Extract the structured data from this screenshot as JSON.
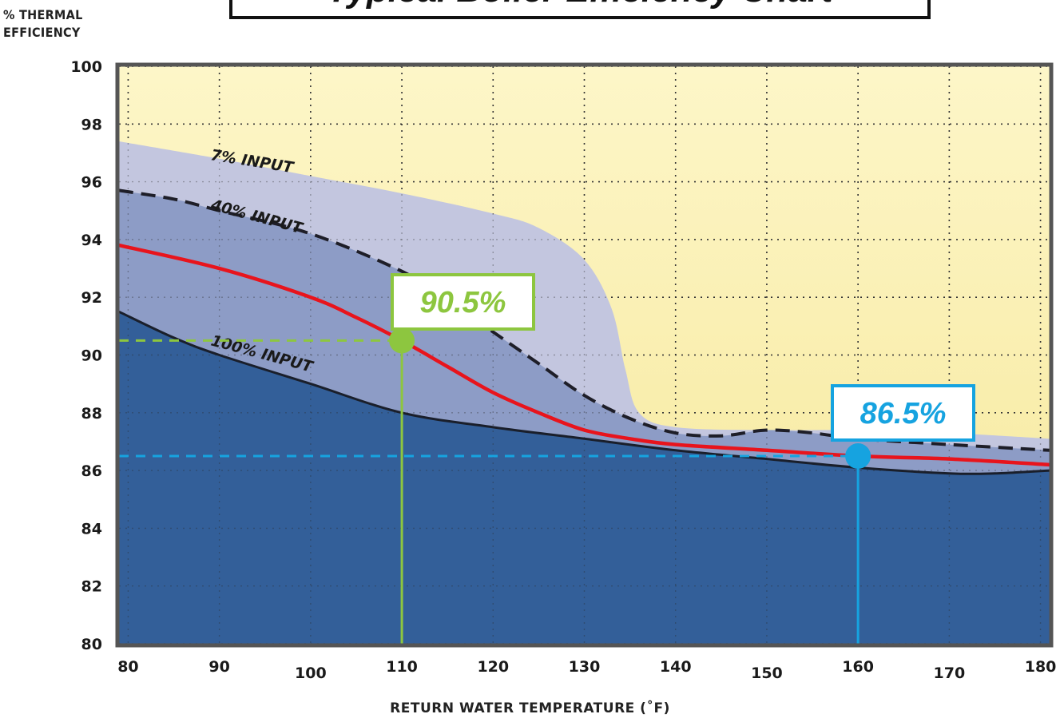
{
  "title": "Typical Boiler Efficiency Chart",
  "colors": {
    "background_top": "#fdf6c8",
    "background_bottom": "#f6e89a",
    "band_7": "#c3c6df",
    "band_40": "#8d9cc6",
    "band_100": "#335f99",
    "red_curve": "#e8141c",
    "green_marker": "#8dc63f",
    "blue_marker": "#16a3e0",
    "frame": "#555555"
  },
  "chart_data": {
    "type": "area",
    "title": "Typical Boiler Efficiency Chart",
    "ylabel": "% THERMAL EFFICIENCY",
    "xlabel": "RETURN WATER TEMPERATURE (˚F)",
    "xlim": [
      79,
      181
    ],
    "ylim": [
      80,
      100
    ],
    "x_ticks": [
      "80",
      "90",
      "100",
      "110",
      "120",
      "130",
      "140",
      "150",
      "160",
      "170",
      "180"
    ],
    "y_ticks": [
      "80",
      "82",
      "84",
      "86",
      "88",
      "90",
      "92",
      "94",
      "96",
      "98",
      "100"
    ],
    "grid": true,
    "series": [
      {
        "name": "7% INPUT",
        "style": "area",
        "x": [
          79,
          90,
          100,
          110,
          120,
          125,
          130,
          133,
          134.5,
          136,
          140,
          150,
          160,
          170,
          181
        ],
        "y": [
          97.4,
          96.8,
          96.2,
          95.6,
          94.9,
          94.4,
          93.3,
          91.6,
          89.5,
          88.0,
          87.5,
          87.4,
          87.4,
          87.3,
          87.1
        ]
      },
      {
        "name": "40% INPUT",
        "style": "dashed",
        "x": [
          79,
          85,
          90,
          100,
          110,
          115,
          120,
          125,
          130,
          135,
          140,
          145,
          150,
          155,
          160,
          170,
          181
        ],
        "y": [
          95.7,
          95.4,
          95.0,
          94.2,
          92.9,
          91.9,
          90.8,
          89.7,
          88.6,
          87.8,
          87.3,
          87.2,
          87.4,
          87.3,
          87.1,
          86.9,
          86.7
        ]
      },
      {
        "name": "100% INPUT",
        "style": "solid",
        "x": [
          79,
          85,
          90,
          100,
          110,
          120,
          130,
          140,
          150,
          160,
          170,
          175,
          181
        ],
        "y": [
          91.5,
          90.6,
          90.0,
          89.0,
          88.0,
          87.5,
          87.1,
          86.7,
          86.4,
          86.1,
          85.9,
          85.9,
          86.0
        ]
      },
      {
        "name": "",
        "style": "red",
        "x": [
          79,
          90,
          100,
          105,
          110,
          115,
          120,
          125,
          130,
          135,
          140,
          150,
          160,
          170,
          181
        ],
        "y": [
          93.8,
          93.0,
          92.0,
          91.3,
          90.5,
          89.6,
          88.7,
          88.0,
          87.4,
          87.1,
          86.9,
          86.7,
          86.5,
          86.4,
          86.2
        ]
      }
    ],
    "callouts": [
      {
        "x": 110,
        "y": 90.5,
        "label": "90.5%"
      },
      {
        "x": 160,
        "y": 86.5,
        "label": "86.5%"
      }
    ]
  }
}
